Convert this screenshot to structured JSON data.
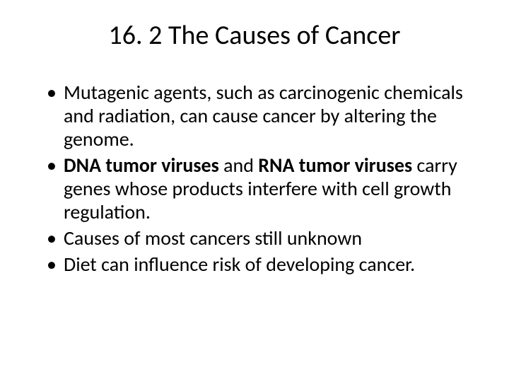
{
  "title": "16. 2  The Causes of Cancer",
  "bullets": {
    "b1_full": "Mutagenic agents, such as carcinogenic chemicals and radiation, can cause cancer by altering the genome.",
    "b2_t1": "DNA tumor viruses",
    "b2_t2": " and ",
    "b2_t3": "RNA tumor viruses",
    "b2_t4": " carry genes whose products interfere with cell growth regulation.",
    "b3_full": "Causes of most cancers still unknown",
    "b4_full": "Diet can influence risk of developing cancer."
  },
  "style": {
    "background_color": "#ffffff",
    "text_color": "#000000",
    "title_fontsize": 38,
    "body_fontsize": 28,
    "font_family": "Calibri"
  }
}
